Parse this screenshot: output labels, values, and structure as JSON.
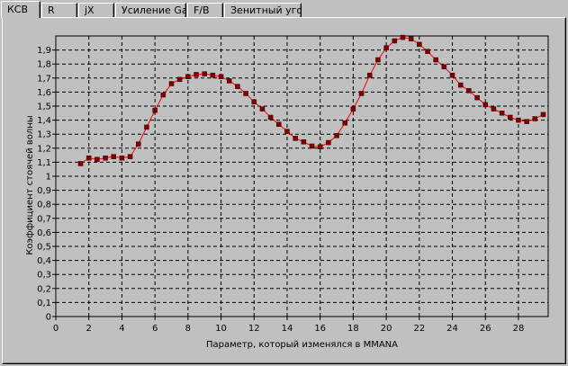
{
  "tabs": [
    {
      "label": "КСВ",
      "active": true
    },
    {
      "label": "R",
      "active": false
    },
    {
      "label": "jX",
      "active": false
    },
    {
      "label": "Усиление Ga",
      "active": false
    },
    {
      "label": "F/B",
      "active": false
    },
    {
      "label": "Зенитный угол",
      "active": false
    }
  ],
  "colors": {
    "line": "#ff0000",
    "marker": "#800000",
    "grid": "#000000",
    "background": "#c0c0c0"
  },
  "chart_data": {
    "type": "line",
    "title": "",
    "xlabel": "Параметр, который изменялся в MMANA",
    "ylabel": "Коэффициент стоячей волны",
    "xlim": [
      0,
      29.8
    ],
    "ylim": [
      0,
      2.0
    ],
    "grid": true,
    "legend": "none",
    "x_ticks": [
      0,
      2,
      4,
      6,
      8,
      10,
      12,
      14,
      16,
      18,
      20,
      22,
      24,
      26,
      28
    ],
    "y_ticks": [
      0,
      0.1,
      0.2,
      0.3,
      0.4,
      0.5,
      0.6,
      0.7,
      0.8,
      0.9,
      1,
      1.1,
      1.2,
      1.3,
      1.4,
      1.5,
      1.6,
      1.7,
      1.8,
      1.9
    ],
    "x_tick_labels": [
      "0",
      "2",
      "4",
      "6",
      "8",
      "10",
      "12",
      "14",
      "16",
      "18",
      "20",
      "22",
      "24",
      "26",
      "28"
    ],
    "y_tick_labels": [
      "0",
      "0,1",
      "0,2",
      "0,3",
      "0,4",
      "0,5",
      "0,6",
      "0,7",
      "0,8",
      "0,9",
      "1",
      "1,1",
      "1,2",
      "1,3",
      "1,4",
      "1,5",
      "1,6",
      "1,7",
      "1,8",
      "1,9"
    ],
    "series": [
      {
        "x": [
          1.5,
          2.0,
          2.5,
          3.0,
          3.5,
          4.0,
          4.5,
          5.0,
          5.5,
          6.0,
          6.5,
          7.0,
          7.5,
          8.0,
          8.5,
          9.0,
          9.5,
          10.0,
          10.5,
          11.0,
          11.5,
          12.0,
          12.5,
          13.0,
          13.5,
          14.0,
          14.5,
          15.0,
          15.5,
          16.0,
          16.5,
          17.0,
          17.5,
          18.0,
          18.5,
          19.0,
          19.5,
          20.0,
          20.5,
          21.0,
          21.5,
          22.0,
          22.5,
          23.0,
          23.5,
          24.0,
          24.5,
          25.0,
          25.5,
          26.0,
          26.5,
          27.0,
          27.5,
          28.0,
          28.5,
          29.0,
          29.5
        ],
        "values": [
          1.09,
          1.13,
          1.12,
          1.13,
          1.14,
          1.13,
          1.14,
          1.23,
          1.35,
          1.47,
          1.58,
          1.66,
          1.69,
          1.71,
          1.725,
          1.73,
          1.72,
          1.71,
          1.68,
          1.64,
          1.59,
          1.53,
          1.48,
          1.42,
          1.37,
          1.32,
          1.27,
          1.245,
          1.215,
          1.21,
          1.24,
          1.29,
          1.38,
          1.48,
          1.59,
          1.72,
          1.83,
          1.915,
          1.965,
          1.99,
          1.98,
          1.94,
          1.89,
          1.83,
          1.78,
          1.72,
          1.65,
          1.61,
          1.56,
          1.51,
          1.48,
          1.45,
          1.42,
          1.4,
          1.39,
          1.41,
          1.44
        ]
      }
    ]
  }
}
